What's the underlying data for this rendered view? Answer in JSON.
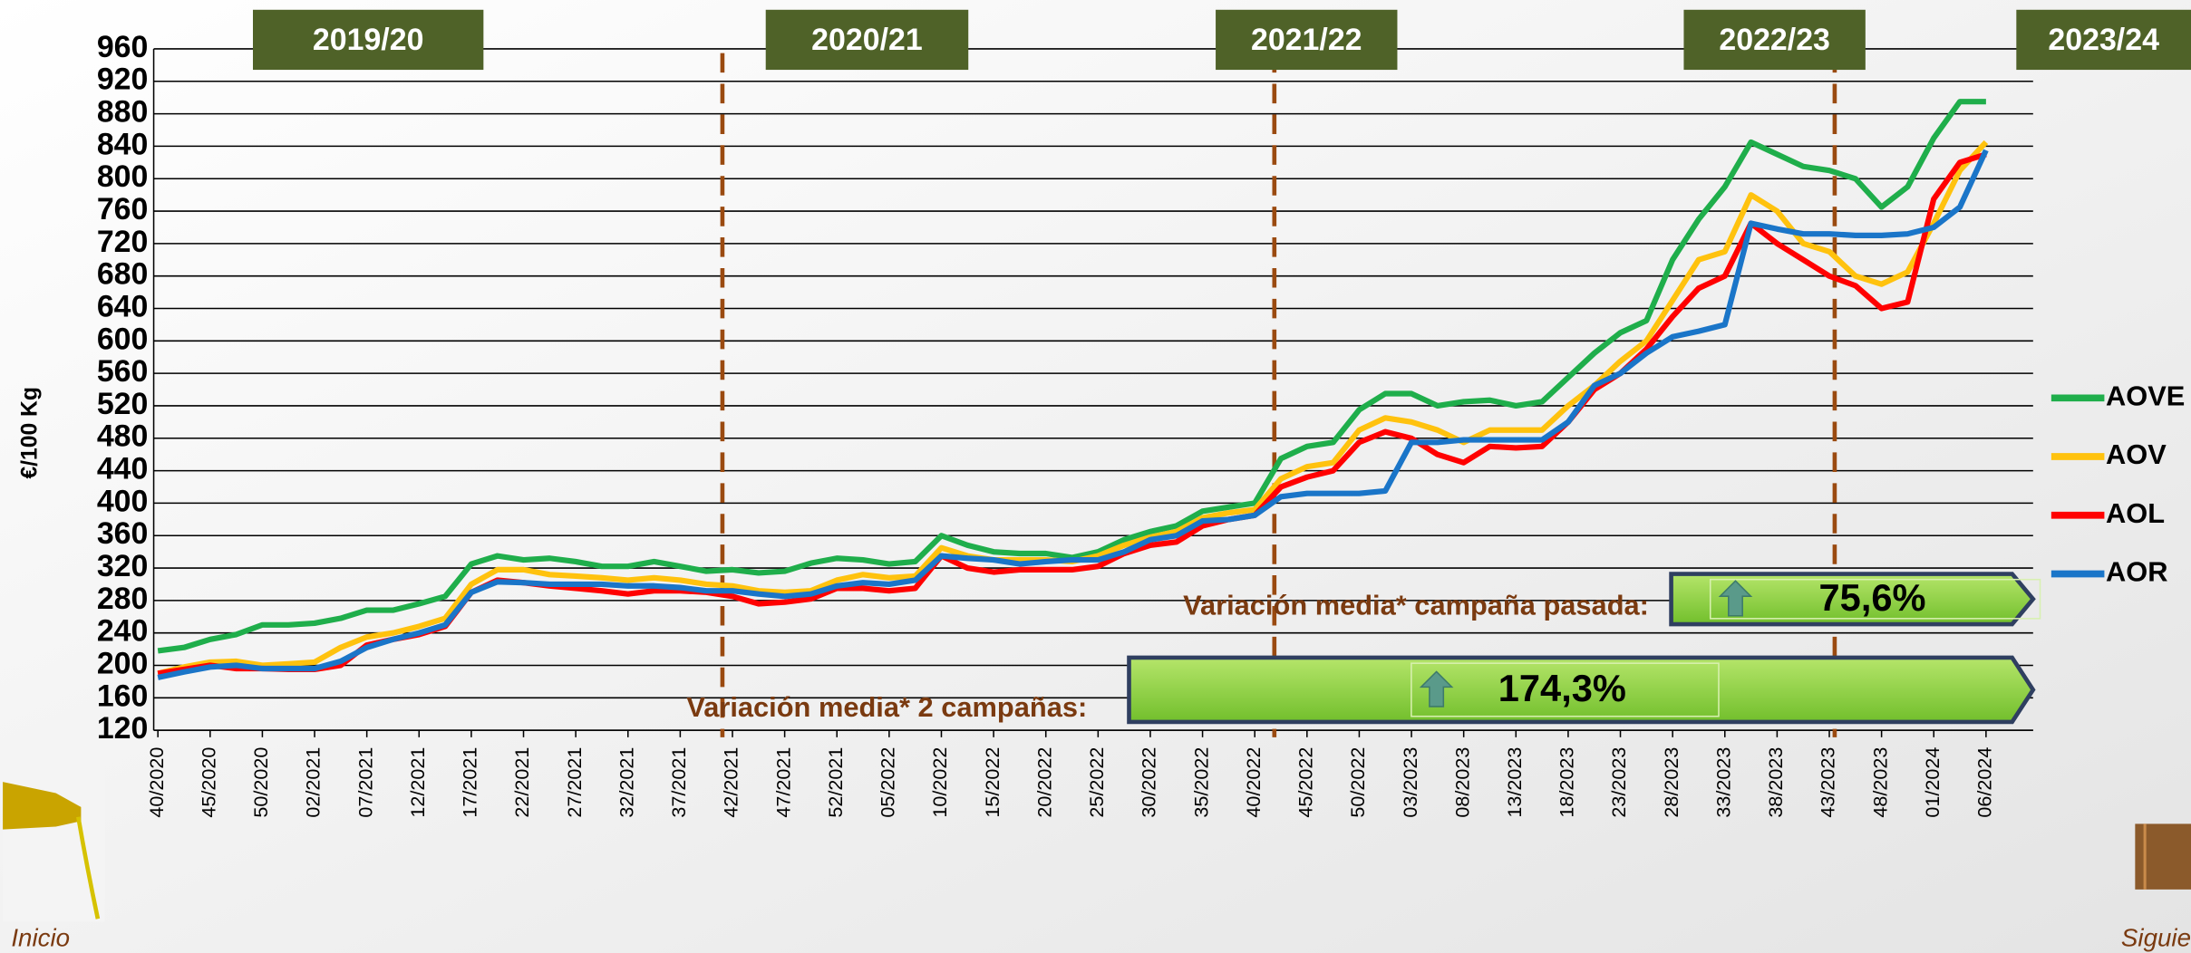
{
  "chart_data": {
    "type": "line",
    "y_label": "€/100 Kg",
    "campaigns": [
      "2019/20",
      "2020/21",
      "2021/22",
      "2022/23",
      "2023/24"
    ],
    "categories": [
      "40/2020",
      null,
      "45/2020",
      null,
      "50/2020",
      null,
      "02/2021",
      null,
      "07/2021",
      null,
      "12/2021",
      null,
      "17/2021",
      null,
      "22/2021",
      null,
      "27/2021",
      null,
      "32/2021",
      null,
      "37/2021",
      null,
      "42/2021",
      null,
      "47/2021",
      null,
      "52/2021",
      null,
      "05/2022",
      null,
      "10/2022",
      null,
      "15/2022",
      null,
      "20/2022",
      null,
      "25/2022",
      null,
      "30/2022",
      null,
      "35/2022",
      null,
      "40/2022",
      null,
      "45/2022",
      null,
      "50/2022",
      null,
      "03/2023",
      null,
      "08/2023",
      null,
      "13/2023",
      null,
      "18/2023",
      null,
      "23/2023",
      null,
      "28/2023",
      null,
      "33/2023",
      null,
      "38/2023",
      null,
      "43/2023",
      null,
      "48/2023",
      null,
      "01/2024",
      null,
      "06/2024"
    ],
    "series": [
      {
        "name": "AOVE",
        "color": "#1fae4b",
        "values": [
          218,
          222,
          232,
          238,
          250,
          250,
          252,
          258,
          268,
          268,
          276,
          285,
          325,
          335,
          330,
          332,
          328,
          322,
          322,
          328,
          322,
          316,
          318,
          314,
          316,
          326,
          332,
          330,
          325,
          328,
          360,
          348,
          340,
          338,
          338,
          333,
          340,
          355,
          365,
          372,
          390,
          395,
          400,
          455,
          470,
          475,
          515,
          535,
          535,
          520,
          525,
          527,
          520,
          525,
          555,
          585,
          610,
          625,
          700,
          750,
          790,
          845,
          830,
          815,
          810,
          800,
          765,
          790,
          850,
          895,
          895
        ]
      },
      {
        "name": "AOV",
        "color": "#ffc20e",
        "values": [
          190,
          198,
          204,
          205,
          200,
          202,
          204,
          222,
          235,
          240,
          248,
          258,
          300,
          318,
          318,
          312,
          310,
          308,
          305,
          308,
          305,
          300,
          298,
          292,
          290,
          292,
          305,
          312,
          308,
          310,
          345,
          335,
          330,
          330,
          330,
          328,
          335,
          348,
          358,
          365,
          382,
          388,
          392,
          430,
          445,
          450,
          490,
          505,
          500,
          490,
          475,
          490,
          490,
          490,
          520,
          545,
          575,
          600,
          650,
          700,
          710,
          780,
          760,
          720,
          710,
          680,
          670,
          685,
          745,
          810,
          845
        ]
      },
      {
        "name": "AOL",
        "color": "#ff0000",
        "values": [
          190,
          195,
          200,
          196,
          196,
          195,
          195,
          200,
          225,
          232,
          238,
          248,
          290,
          305,
          302,
          298,
          295,
          292,
          288,
          292,
          292,
          290,
          285,
          276,
          278,
          282,
          295,
          295,
          292,
          295,
          335,
          320,
          315,
          318,
          318,
          318,
          322,
          338,
          348,
          352,
          372,
          380,
          385,
          420,
          432,
          440,
          475,
          488,
          480,
          460,
          450,
          470,
          468,
          470,
          500,
          540,
          560,
          590,
          630,
          665,
          680,
          745,
          720,
          700,
          680,
          668,
          640,
          648,
          775,
          820,
          830
        ]
      },
      {
        "name": "AOR",
        "color": "#1a75c8",
        "values": [
          185,
          192,
          198,
          200,
          196,
          196,
          196,
          205,
          222,
          232,
          240,
          250,
          290,
          303,
          302,
          300,
          300,
          300,
          298,
          298,
          296,
          292,
          292,
          288,
          285,
          288,
          298,
          302,
          300,
          305,
          335,
          332,
          330,
          325,
          328,
          330,
          330,
          340,
          355,
          360,
          378,
          380,
          385,
          408,
          412,
          412,
          412,
          415,
          475,
          475,
          478,
          478,
          478,
          478,
          500,
          545,
          560,
          585,
          605,
          612,
          620,
          745,
          738,
          732,
          732,
          730,
          730,
          732,
          740,
          765,
          835
        ]
      }
    ],
    "ylim": [
      120,
      960
    ],
    "yticks": [
      120,
      160,
      200,
      240,
      280,
      320,
      360,
      400,
      440,
      480,
      520,
      560,
      600,
      640,
      680,
      720,
      760,
      800,
      840,
      880,
      920,
      960
    ],
    "grid": true,
    "legend": "right",
    "annotations": [
      {
        "text": "Variación media* campaña pasada:",
        "value_text": "75,6%"
      },
      {
        "text": "Variación media* 2 campañas:",
        "value_text": "174,3%"
      }
    ]
  },
  "nav": {
    "previous": "Inicio",
    "next": "Siguie"
  }
}
